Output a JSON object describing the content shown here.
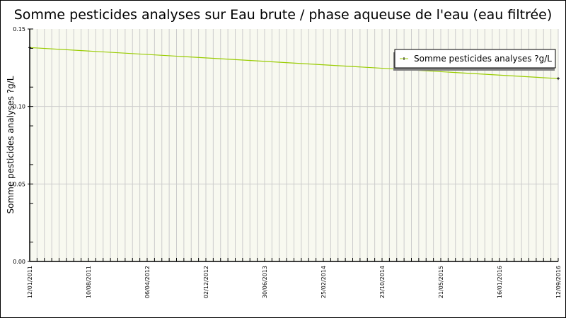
{
  "chart_data": {
    "type": "line",
    "title": "Somme pesticides analyses sur Eau brute / phase aqueuse de l'eau (eau filtrée)",
    "xlabel": "",
    "ylabel": "Somme pesticides analyses ?g/L",
    "x_tick_labels": [
      "12/01/2011",
      "10/08/2011",
      "06/04/2012",
      "02/12/2012",
      "30/06/2013",
      "25/02/2014",
      "23/10/2014",
      "21/05/2015",
      "16/01/2016",
      "12/09/2016"
    ],
    "y_tick_labels": [
      "0.00",
      "0.05",
      "0.10",
      "0.15"
    ],
    "ylim": [
      0,
      0.15
    ],
    "grid": true,
    "legend_placement": "top-right",
    "series": [
      {
        "name": "Somme pesticides analyses ?g/L",
        "color": "#99cc00",
        "points": [
          {
            "x": "12/01/2011",
            "y": 0.138
          },
          {
            "x": "12/09/2016",
            "y": 0.118
          }
        ]
      }
    ],
    "colors": {
      "plot_background": "#f8f9f0",
      "grid": "#cccccc"
    }
  }
}
